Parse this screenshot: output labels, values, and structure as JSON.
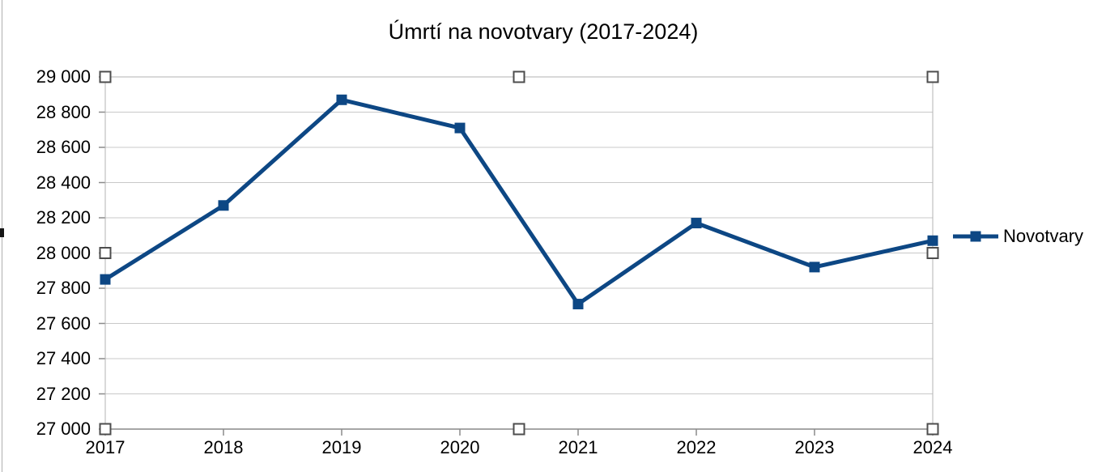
{
  "chart_data": {
    "type": "line",
    "title": "Úmrtí na novotvary (2017-2024)",
    "categories": [
      "2017",
      "2018",
      "2019",
      "2020",
      "2021",
      "2022",
      "2023",
      "2024"
    ],
    "series": [
      {
        "name": "Novotvary",
        "values": [
          27850,
          28270,
          28870,
          28710,
          27710,
          28170,
          27920,
          28070
        ],
        "color": "#0d4784",
        "marker": "square"
      }
    ],
    "ylim": [
      27000,
      29000
    ],
    "ytick_step": 200,
    "y_tick_labels": [
      "29 000",
      "28 800",
      "28 600",
      "28 400",
      "28 200",
      "28 000",
      "27 800",
      "27 600",
      "27 400",
      "27 200",
      "27 000"
    ],
    "xlabel": "",
    "ylabel": "",
    "grid": "horizontal-only",
    "legend_position": "right",
    "editor_state": {
      "wall_selection_handles_visible": true,
      "frame_left_resize_handle_visible": true
    },
    "colors": {
      "series": "#0d4784",
      "gridline": "#c8c8c8",
      "wall_border": "#b3b3b3",
      "axis_line": "#a6a6a6",
      "tick": "#8a8a8a",
      "handle_border": "#4d4d4d",
      "handle_fill": "#ffffff",
      "background": "#ffffff",
      "text": "#000000"
    }
  }
}
